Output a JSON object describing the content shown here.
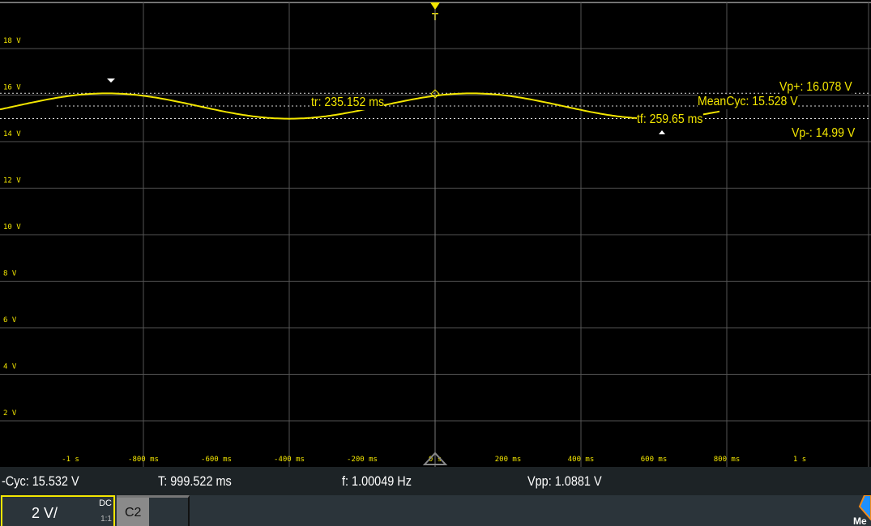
{
  "channel_color": "#f3e600",
  "trigger_label": "T",
  "y_labels": [
    "18 V",
    "16 V",
    "14 V",
    "12 V",
    "10 V",
    "8 V",
    "6 V",
    "4 V",
    "2 V"
  ],
  "x_labels": [
    "-1 s",
    "-800 ms",
    "-600 ms",
    "-400 ms",
    "-200 ms",
    "0 s",
    "200 ms",
    "400 ms",
    "600 ms",
    "800 ms",
    "1 s"
  ],
  "overlay": {
    "tr": "tr: 235.152 ms",
    "tf": "tf: 259.65 ms",
    "mean": "MeanCyc: 15.528 V",
    "vpp_plus": "Vp+: 16.078 V",
    "vp_minus": "Vp-: 14.99 V"
  },
  "measurements": {
    "mean": "-Cyc: 15.532 V",
    "period": "T: 999.522 ms",
    "freq": "f: 1.00049 Hz",
    "vpp": "Vpp: 1.0881 V"
  },
  "channel": {
    "scale": "2 V/",
    "coupling": "DC",
    "ratio": "1:1",
    "ch2": "C2"
  },
  "logo_text": "Me",
  "waveform": {
    "mean_v": 15.53,
    "vpp_v": 1.0881,
    "freq_hz": 1.0,
    "peak_time_s": 0.1,
    "volts_per_div": 2,
    "time_range_s": [
      -1.19,
      1.19
    ]
  }
}
